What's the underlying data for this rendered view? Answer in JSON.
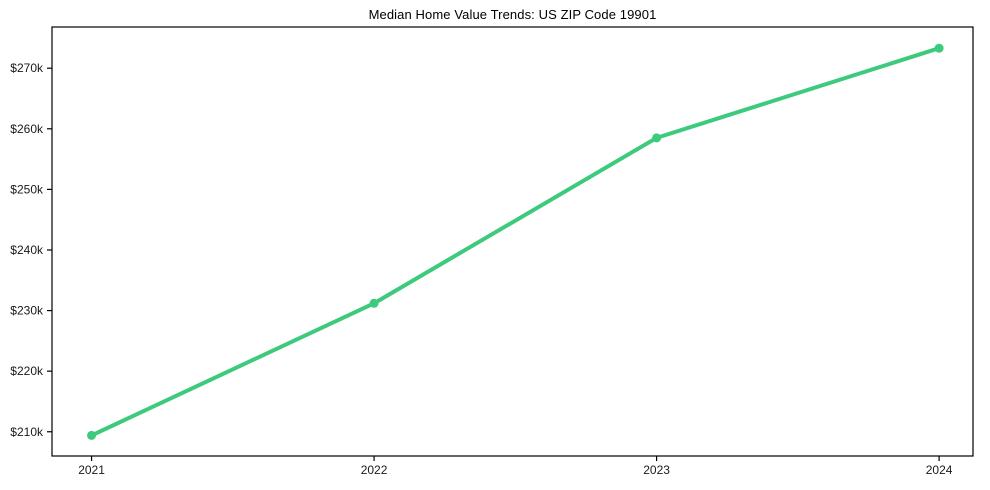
{
  "chart_data": {
    "type": "line",
    "title": "Median Home Value Trends: US ZIP Code 19901",
    "x": [
      2021,
      2022,
      2023,
      2024
    ],
    "x_tick_labels": [
      "2021",
      "2022",
      "2023",
      "2024"
    ],
    "series": [
      {
        "name": "Median Home Value",
        "values": [
          209400,
          231200,
          258500,
          273300
        ],
        "color": "#3dca7d",
        "line_width": 4,
        "marker": "circle",
        "marker_radius": 4.5
      }
    ],
    "y_ticks": [
      210000,
      220000,
      230000,
      240000,
      250000,
      260000,
      270000
    ],
    "y_tick_labels": [
      "$210k",
      "$220k",
      "$230k",
      "$240k",
      "$250k",
      "$260k",
      "$270k"
    ],
    "xlim": [
      2020.86,
      2024.12
    ],
    "ylim": [
      206000,
      276800
    ],
    "xlabel": "",
    "ylabel": "",
    "grid": false,
    "legend": "none",
    "axis_color": "#000000",
    "tick_label_color": "#1a1a1a",
    "title_color": "#000000",
    "background_color": "#ffffff"
  }
}
